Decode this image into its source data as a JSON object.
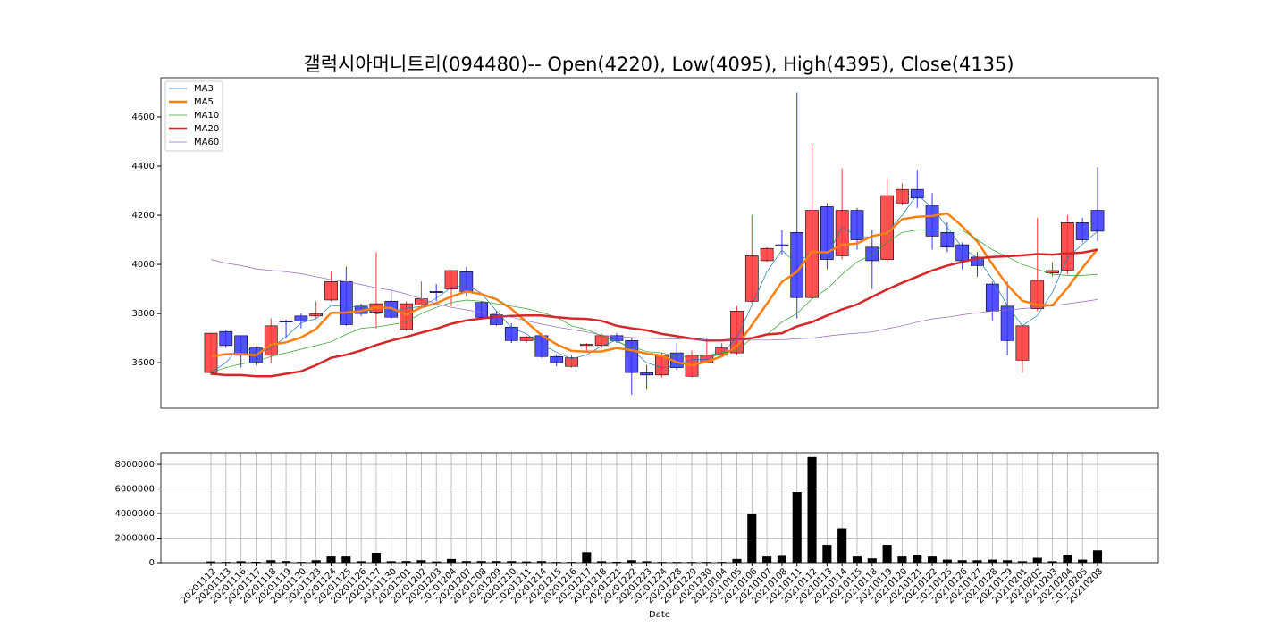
{
  "chart_data": [
    {
      "type": "candlestick",
      "title": "갤럭시아머니트리(094480)-- Open(4220), Low(4095), High(4395), Close(4135)",
      "open": [
        3560,
        3727,
        3710,
        3660,
        3630,
        3770,
        3790,
        3790,
        3855,
        3930,
        3830,
        3805,
        3850,
        3735,
        3835,
        3890,
        3900,
        3970,
        3845,
        3795,
        3745,
        3690,
        3710,
        3625,
        3585,
        3670,
        3670,
        3710,
        3690,
        3560,
        3550,
        3640,
        3545,
        3600,
        3630,
        3640,
        3850,
        4015,
        4080,
        4130,
        3865,
        4235,
        4035,
        4220,
        4070,
        4020,
        4250,
        4305,
        4240,
        4130,
        4080,
        4030,
        3920,
        3830,
        3610,
        3820,
        3965,
        3975,
        4170,
        4220
      ],
      "high": [
        3720,
        3735,
        3710,
        3665,
        3780,
        3775,
        3800,
        3850,
        3970,
        3990,
        3840,
        4050,
        3900,
        3850,
        3930,
        3920,
        3975,
        3990,
        3850,
        3810,
        3760,
        3710,
        3720,
        3635,
        3630,
        3680,
        3720,
        3720,
        3700,
        3590,
        3640,
        3680,
        3650,
        3700,
        3680,
        3830,
        4200,
        4070,
        4140,
        4700,
        4490,
        4250,
        4390,
        4230,
        4140,
        4350,
        4330,
        4385,
        4290,
        4170,
        4090,
        4050,
        3930,
        3930,
        3750,
        4190,
        4010,
        4200,
        4190,
        4395
      ],
      "low": [
        3550,
        3660,
        3580,
        3590,
        3600,
        3700,
        3740,
        3780,
        3850,
        3750,
        3790,
        3740,
        3780,
        3730,
        3820,
        3850,
        3830,
        3870,
        3780,
        3750,
        3680,
        3680,
        3620,
        3585,
        3580,
        3640,
        3660,
        3680,
        3470,
        3490,
        3540,
        3570,
        3540,
        3600,
        3620,
        3630,
        3840,
        4010,
        4040,
        3780,
        3860,
        3980,
        4020,
        4060,
        3900,
        4010,
        4240,
        4230,
        4060,
        4050,
        3980,
        3950,
        3770,
        3630,
        3560,
        3810,
        3950,
        3960,
        4090,
        4095
      ],
      "close": [
        3720,
        3670,
        3630,
        3600,
        3750,
        3765,
        3770,
        3800,
        3930,
        3755,
        3800,
        3840,
        3785,
        3840,
        3860,
        3885,
        3975,
        3890,
        3785,
        3755,
        3690,
        3705,
        3625,
        3600,
        3620,
        3675,
        3710,
        3690,
        3560,
        3550,
        3630,
        3580,
        3630,
        3630,
        3660,
        3810,
        4035,
        4065,
        4075,
        3865,
        4220,
        4020,
        4220,
        4100,
        4015,
        4280,
        4305,
        4270,
        4115,
        4070,
        4015,
        3995,
        3810,
        3690,
        3750,
        3935,
        3975,
        4170,
        4100,
        4135
      ],
      "up_color": "#ff3333",
      "down_color": "#3333ff",
      "series": [
        {
          "name": "MA3",
          "color": "#1f77b4",
          "width": 0.7,
          "values": [
            3560,
            3600,
            3673,
            3633,
            3660,
            3705,
            3762,
            3778,
            3833,
            3828,
            3828,
            3798,
            3808,
            3822,
            3828,
            3862,
            3907,
            3917,
            3883,
            3810,
            3743,
            3717,
            3673,
            3643,
            3615,
            3632,
            3668,
            3692,
            3653,
            3600,
            3580,
            3587,
            3613,
            3613,
            3640,
            3700,
            3835,
            3970,
            4058,
            4002,
            4053,
            4035,
            4153,
            4113,
            4112,
            4132,
            4200,
            4285,
            4230,
            4152,
            4067,
            4027,
            3940,
            3832,
            3750,
            3792,
            3887,
            4027,
            4082,
            4135
          ]
        },
        {
          "name": "MA5",
          "color": "#ff7f0e",
          "width": 2.5,
          "values": [
            3625,
            3635,
            3635,
            3630,
            3674,
            3683,
            3703,
            3737,
            3803,
            3804,
            3811,
            3825,
            3822,
            3796,
            3825,
            3842,
            3869,
            3890,
            3879,
            3858,
            3819,
            3765,
            3712,
            3675,
            3648,
            3645,
            3646,
            3660,
            3651,
            3637,
            3628,
            3602,
            3590,
            3604,
            3626,
            3668,
            3753,
            3840,
            3929,
            3970,
            4052,
            4049,
            4080,
            4085,
            4115,
            4127,
            4184,
            4194,
            4197,
            4208,
            4155,
            4093,
            4001,
            3916,
            3852,
            3836,
            3833,
            3904,
            3986,
            4063
          ]
        },
        {
          "name": "MA10",
          "color": "#2ca02c",
          "width": 0.7,
          "values": [
            3560,
            3580,
            3595,
            3605,
            3625,
            3640,
            3655,
            3670,
            3685,
            3715,
            3740,
            3745,
            3755,
            3765,
            3800,
            3825,
            3845,
            3855,
            3850,
            3840,
            3830,
            3820,
            3805,
            3785,
            3750,
            3735,
            3710,
            3685,
            3665,
            3645,
            3640,
            3625,
            3625,
            3630,
            3640,
            3650,
            3700,
            3715,
            3765,
            3800,
            3860,
            3900,
            3960,
            4010,
            4040,
            4090,
            4130,
            4140,
            4140,
            4140,
            4140,
            4100,
            4060,
            4030,
            4000,
            3980,
            3960,
            3955,
            3955,
            3960
          ]
        },
        {
          "name": "MA20",
          "color": "#d62728",
          "width": 2.5,
          "values": [
            3555,
            3550,
            3550,
            3545,
            3545,
            3555,
            3565,
            3590,
            3620,
            3632,
            3650,
            3672,
            3690,
            3705,
            3722,
            3738,
            3758,
            3772,
            3780,
            3787,
            3790,
            3792,
            3792,
            3785,
            3780,
            3778,
            3770,
            3750,
            3740,
            3732,
            3717,
            3708,
            3698,
            3690,
            3690,
            3695,
            3700,
            3715,
            3720,
            3748,
            3765,
            3792,
            3817,
            3837,
            3868,
            3898,
            3925,
            3950,
            3975,
            3995,
            4010,
            4025,
            4030,
            4033,
            4037,
            4042,
            4040,
            4045,
            4048,
            4060
          ]
        },
        {
          "name": "MA60",
          "color": "#9467bd",
          "width": 0.7,
          "values": [
            4020,
            4005,
            3995,
            3982,
            3975,
            3970,
            3962,
            3950,
            3938,
            3930,
            3918,
            3905,
            3895,
            3880,
            3860,
            3840,
            3825,
            3815,
            3805,
            3797,
            3785,
            3770,
            3757,
            3745,
            3735,
            3725,
            3712,
            3705,
            3702,
            3700,
            3698,
            3697,
            3695,
            3693,
            3692,
            3692,
            3692,
            3692,
            3693,
            3697,
            3700,
            3708,
            3715,
            3720,
            3725,
            3738,
            3750,
            3765,
            3778,
            3785,
            3795,
            3803,
            3810,
            3815,
            3820,
            3825,
            3832,
            3840,
            3848,
            3857
          ]
        }
      ],
      "ylim": [
        3415,
        4760
      ],
      "yticks": [
        3600,
        3800,
        4000,
        4200,
        4400,
        4600
      ],
      "legend": "upper left",
      "grid": false
    },
    {
      "type": "bar",
      "x_label": "Date",
      "categories": [
        "20201112",
        "20201113",
        "20201116",
        "20201117",
        "20201118",
        "20201119",
        "20201120",
        "20201123",
        "20201124",
        "20201125",
        "20201126",
        "20201127",
        "20201130",
        "20201201",
        "20201202",
        "20201203",
        "20201204",
        "20201207",
        "20201208",
        "20201209",
        "20201210",
        "20201211",
        "20201214",
        "20201215",
        "20201216",
        "20201217",
        "20201218",
        "20201221",
        "20201222",
        "20201223",
        "20201224",
        "20201228",
        "20201229",
        "20201230",
        "20210104",
        "20210105",
        "20210106",
        "20210107",
        "20210108",
        "20210111",
        "20210112",
        "20210113",
        "20210114",
        "20210115",
        "20210118",
        "20210119",
        "20210120",
        "20210121",
        "20210122",
        "20210125",
        "20210126",
        "20210127",
        "20210128",
        "20210129",
        "20210201",
        "20210202",
        "20210203",
        "20210204",
        "20210205",
        "20210208"
      ],
      "values": [
        100000,
        60000,
        120000,
        70000,
        200000,
        130000,
        60000,
        200000,
        500000,
        500000,
        120000,
        800000,
        120000,
        130000,
        200000,
        100000,
        300000,
        130000,
        130000,
        130000,
        130000,
        100000,
        130000,
        60000,
        60000,
        850000,
        120000,
        70000,
        200000,
        120000,
        60000,
        60000,
        60000,
        60000,
        60000,
        300000,
        3950000,
        500000,
        550000,
        5750000,
        8600000,
        1450000,
        2800000,
        500000,
        350000,
        1450000,
        500000,
        650000,
        500000,
        250000,
        200000,
        200000,
        250000,
        200000,
        120000,
        400000,
        120000,
        650000,
        250000,
        1000000
      ],
      "color": "#000000",
      "ylim": [
        0,
        8950000
      ],
      "yticks": [
        0,
        2000000,
        4000000,
        6000000,
        8000000
      ],
      "grid": true
    }
  ]
}
